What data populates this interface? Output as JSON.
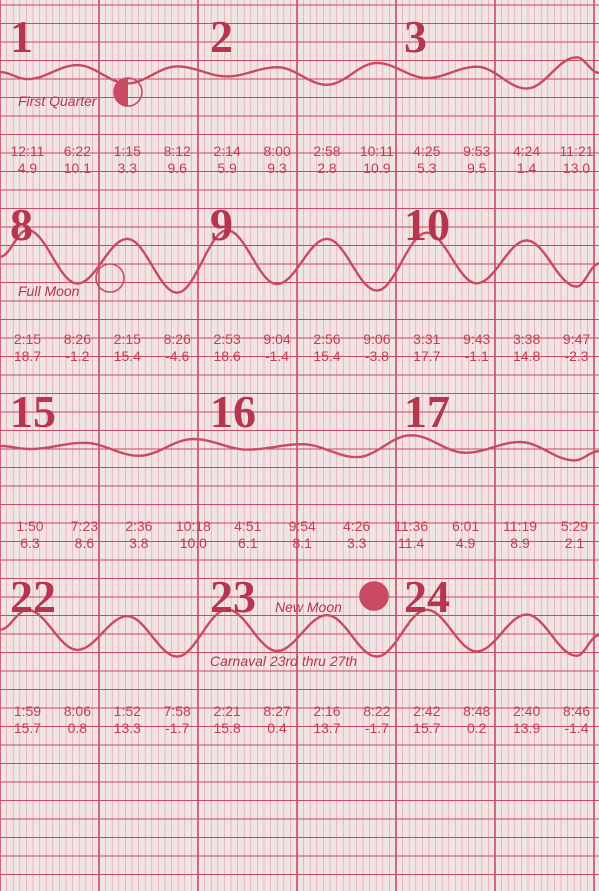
{
  "colors": {
    "paper": "#f1e4e4",
    "grid_minor": "#e5a3b1",
    "grid_major": "#c84a63",
    "curve": "#c84a63",
    "text": "#b5364e"
  },
  "chart_data": [
    {
      "type": "line",
      "days": [
        "1",
        "2",
        "3"
      ],
      "annotations": [
        {
          "text": "First Quarter",
          "moon": "first-quarter"
        }
      ],
      "tides": [
        {
          "time": "12:11",
          "height": 4.9
        },
        {
          "time": "6:22",
          "height": 10.1
        },
        {
          "time": "1:15",
          "height": 3.3
        },
        {
          "time": "8:12",
          "height": 9.6
        },
        {
          "time": "2:14",
          "height": 5.9
        },
        {
          "time": "8:00",
          "height": 9.3
        },
        {
          "time": "2:58",
          "height": 2.8
        },
        {
          "time": "10:11",
          "height": 10.9
        },
        {
          "time": "4:25",
          "height": 5.3
        },
        {
          "time": "9:53",
          "height": 9.5
        },
        {
          "time": "4:24",
          "height": 1.4
        },
        {
          "time": "11:21",
          "height": 13.0
        }
      ]
    },
    {
      "type": "line",
      "days": [
        "8",
        "9",
        "10"
      ],
      "annotations": [
        {
          "text": "Full Moon",
          "moon": "full"
        }
      ],
      "tides": [
        {
          "time": "2:15",
          "height": 18.7
        },
        {
          "time": "8:26",
          "height": -1.2
        },
        {
          "time": "2:15",
          "height": 15.4
        },
        {
          "time": "8:26",
          "height": -4.6
        },
        {
          "time": "2:53",
          "height": 18.6
        },
        {
          "time": "9:04",
          "height": -1.4
        },
        {
          "time": "2:56",
          "height": 15.4
        },
        {
          "time": "9:06",
          "height": -3.8
        },
        {
          "time": "3:31",
          "height": 17.7
        },
        {
          "time": "9:43",
          "height": -1.1
        },
        {
          "time": "3:38",
          "height": 14.8
        },
        {
          "time": "9:47",
          "height": -2.3
        }
      ]
    },
    {
      "type": "line",
      "days": [
        "15",
        "16",
        "17"
      ],
      "annotations": [],
      "tides": [
        {
          "time": "1:50",
          "height": 6.3
        },
        {
          "time": "7:23",
          "height": 8.6
        },
        {
          "time": "2:36",
          "height": 3.8
        },
        {
          "time": "10:18",
          "height": 10.0
        },
        {
          "time": "4:51",
          "height": 6.1
        },
        {
          "time": "9:54",
          "height": 8.1
        },
        {
          "time": "4:26",
          "height": 3.3
        },
        {
          "time": "11:36",
          "height": 11.4
        },
        {
          "time": "6:01",
          "height": 4.9
        },
        {
          "time": "11:19",
          "height": 8.9
        },
        {
          "time": "5:29",
          "height": 2.1
        }
      ]
    },
    {
      "type": "line",
      "days": [
        "22",
        "23",
        "24"
      ],
      "annotations": [
        {
          "text": "New Moon",
          "moon": "new"
        },
        {
          "text": "Carnaval 23rd thru 27th"
        }
      ],
      "tides": [
        {
          "time": "1:59",
          "height": 15.7
        },
        {
          "time": "8:06",
          "height": 0.8
        },
        {
          "time": "1:52",
          "height": 13.3
        },
        {
          "time": "7:58",
          "height": -1.7
        },
        {
          "time": "2:21",
          "height": 15.8
        },
        {
          "time": "8:27",
          "height": 0.4
        },
        {
          "time": "2:16",
          "height": 13.7
        },
        {
          "time": "8:22",
          "height": -1.7
        },
        {
          "time": "2:42",
          "height": 15.7
        },
        {
          "time": "8:48",
          "height": 0.2
        },
        {
          "time": "2:40",
          "height": 13.9
        },
        {
          "time": "8:46",
          "height": -1.4
        }
      ]
    }
  ]
}
